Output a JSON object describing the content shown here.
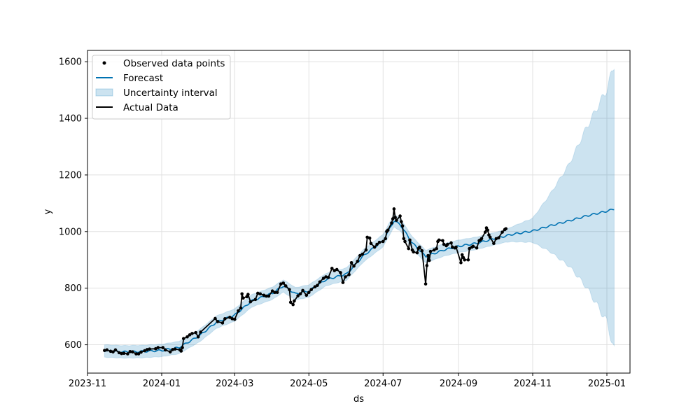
{
  "chart_data": {
    "type": "line",
    "xlabel": "ds",
    "ylabel": "y",
    "x_type": "date",
    "xlim": [
      "2023-11-01",
      "2025-01-20"
    ],
    "ylim": [
      500,
      1640
    ],
    "grid": true,
    "legend_placement": "top-left",
    "x_ticks": [
      "2023-11",
      "2024-01",
      "2024-03",
      "2024-05",
      "2024-07",
      "2024-09",
      "2024-11",
      "2025-01"
    ],
    "x_tick_labels": [
      "2023-11",
      "2024-01",
      "2024-03",
      "2024-05",
      "2024-07",
      "2024-09",
      "2024-11",
      "2025-01"
    ],
    "y_ticks": [
      600,
      800,
      1000,
      1200,
      1400,
      1600
    ],
    "legend": [
      {
        "label": "Observed data points",
        "kind": "marker"
      },
      {
        "label": "Forecast",
        "kind": "line"
      },
      {
        "label": "Uncertainty interval",
        "kind": "band"
      },
      {
        "label": "Actual Data",
        "kind": "line-black"
      }
    ],
    "colors": {
      "forecast": "#0072b2",
      "band": "#0072b2",
      "actual": "#000000",
      "grid": "#e0e0e0"
    },
    "series": [
      {
        "name": "Actual Data",
        "points": [
          [
            "2023-11-15",
            580
          ],
          [
            "2023-11-17",
            582
          ],
          [
            "2023-11-20",
            577
          ],
          [
            "2023-11-22",
            575
          ],
          [
            "2023-11-24",
            582
          ],
          [
            "2023-11-27",
            572
          ],
          [
            "2023-11-29",
            569
          ],
          [
            "2023-12-01",
            570
          ],
          [
            "2023-12-04",
            568
          ],
          [
            "2023-12-06",
            576
          ],
          [
            "2023-12-08",
            575
          ],
          [
            "2023-12-11",
            568
          ],
          [
            "2023-12-13",
            568
          ],
          [
            "2023-12-15",
            574
          ],
          [
            "2023-12-18",
            579
          ],
          [
            "2023-12-20",
            583
          ],
          [
            "2023-12-22",
            585
          ],
          [
            "2023-12-27",
            586
          ],
          [
            "2023-12-29",
            590
          ],
          [
            "2024-01-02",
            590
          ],
          [
            "2024-01-04",
            582
          ],
          [
            "2024-01-08",
            575
          ],
          [
            "2024-01-10",
            583
          ],
          [
            "2024-01-12",
            585
          ],
          [
            "2024-01-16",
            582
          ],
          [
            "2024-01-17",
            578
          ],
          [
            "2024-01-18",
            590
          ],
          [
            "2024-01-19",
            622
          ],
          [
            "2024-01-22",
            628
          ],
          [
            "2024-01-24",
            635
          ],
          [
            "2024-01-26",
            640
          ],
          [
            "2024-01-29",
            643
          ],
          [
            "2024-01-31",
            628
          ],
          [
            "2024-02-02",
            645
          ],
          [
            "2024-02-14",
            693
          ],
          [
            "2024-02-16",
            682
          ],
          [
            "2024-02-20",
            677
          ],
          [
            "2024-02-22",
            692
          ],
          [
            "2024-02-26",
            697
          ],
          [
            "2024-02-28",
            692
          ],
          [
            "2024-03-01",
            690
          ],
          [
            "2024-03-04",
            720
          ],
          [
            "2024-03-06",
            730
          ],
          [
            "2024-03-07",
            780
          ],
          [
            "2024-03-08",
            765
          ],
          [
            "2024-03-11",
            770
          ],
          [
            "2024-03-12",
            778
          ],
          [
            "2024-03-14",
            752
          ],
          [
            "2024-03-18",
            760
          ],
          [
            "2024-03-20",
            782
          ],
          [
            "2024-03-22",
            780
          ],
          [
            "2024-03-25",
            775
          ],
          [
            "2024-03-27",
            772
          ],
          [
            "2024-03-29",
            772
          ],
          [
            "2024-04-01",
            790
          ],
          [
            "2024-04-03",
            785
          ],
          [
            "2024-04-05",
            785
          ],
          [
            "2024-04-08",
            815
          ],
          [
            "2024-04-10",
            818
          ],
          [
            "2024-04-12",
            808
          ],
          [
            "2024-04-15",
            795
          ],
          [
            "2024-04-16",
            750
          ],
          [
            "2024-04-18",
            742
          ],
          [
            "2024-04-19",
            755
          ],
          [
            "2024-04-22",
            773
          ],
          [
            "2024-04-24",
            780
          ],
          [
            "2024-04-26",
            792
          ],
          [
            "2024-04-29",
            775
          ],
          [
            "2024-05-01",
            785
          ],
          [
            "2024-05-03",
            795
          ],
          [
            "2024-05-06",
            805
          ],
          [
            "2024-05-08",
            810
          ],
          [
            "2024-05-10",
            822
          ],
          [
            "2024-05-13",
            835
          ],
          [
            "2024-05-15",
            840
          ],
          [
            "2024-05-17",
            838
          ],
          [
            "2024-05-20",
            870
          ],
          [
            "2024-05-22",
            862
          ],
          [
            "2024-05-24",
            866
          ],
          [
            "2024-05-27",
            855
          ],
          [
            "2024-05-29",
            820
          ],
          [
            "2024-05-31",
            840
          ],
          [
            "2024-06-03",
            848
          ],
          [
            "2024-06-05",
            890
          ],
          [
            "2024-06-07",
            878
          ],
          [
            "2024-06-10",
            895
          ],
          [
            "2024-06-12",
            915
          ],
          [
            "2024-06-14",
            920
          ],
          [
            "2024-06-17",
            935
          ],
          [
            "2024-06-18",
            980
          ],
          [
            "2024-06-20",
            977
          ],
          [
            "2024-06-21",
            958
          ],
          [
            "2024-06-24",
            945
          ],
          [
            "2024-06-26",
            955
          ],
          [
            "2024-06-28",
            962
          ],
          [
            "2024-07-01",
            965
          ],
          [
            "2024-07-03",
            975
          ],
          [
            "2024-07-04",
            1000
          ],
          [
            "2024-07-05",
            1005
          ],
          [
            "2024-07-08",
            1030
          ],
          [
            "2024-07-09",
            1045
          ],
          [
            "2024-07-10",
            1080
          ],
          [
            "2024-07-11",
            1050
          ],
          [
            "2024-07-12",
            1040
          ],
          [
            "2024-07-15",
            1055
          ],
          [
            "2024-07-16",
            1035
          ],
          [
            "2024-07-17",
            1020
          ],
          [
            "2024-07-18",
            975
          ],
          [
            "2024-07-19",
            965
          ],
          [
            "2024-07-22",
            940
          ],
          [
            "2024-07-23",
            970
          ],
          [
            "2024-07-25",
            935
          ],
          [
            "2024-07-26",
            928
          ],
          [
            "2024-07-29",
            925
          ],
          [
            "2024-07-30",
            940
          ],
          [
            "2024-07-31",
            945
          ],
          [
            "2024-08-02",
            932
          ],
          [
            "2024-08-05",
            815
          ],
          [
            "2024-08-06",
            880
          ],
          [
            "2024-08-07",
            915
          ],
          [
            "2024-08-08",
            898
          ],
          [
            "2024-08-09",
            930
          ],
          [
            "2024-08-12",
            935
          ],
          [
            "2024-08-14",
            940
          ],
          [
            "2024-08-15",
            965
          ],
          [
            "2024-08-16",
            970
          ],
          [
            "2024-08-19",
            968
          ],
          [
            "2024-08-20",
            955
          ],
          [
            "2024-08-22",
            950
          ],
          [
            "2024-08-23",
            955
          ],
          [
            "2024-08-26",
            960
          ],
          [
            "2024-08-27",
            945
          ],
          [
            "2024-08-29",
            942
          ],
          [
            "2024-08-30",
            945
          ],
          [
            "2024-09-03",
            890
          ],
          [
            "2024-09-04",
            918
          ],
          [
            "2024-09-05",
            908
          ],
          [
            "2024-09-06",
            900
          ],
          [
            "2024-09-09",
            900
          ],
          [
            "2024-09-10",
            940
          ],
          [
            "2024-09-12",
            945
          ],
          [
            "2024-09-13",
            948
          ],
          [
            "2024-09-16",
            942
          ],
          [
            "2024-09-18",
            968
          ],
          [
            "2024-09-19",
            970
          ],
          [
            "2024-09-20",
            975
          ],
          [
            "2024-09-23",
            998
          ],
          [
            "2024-09-24",
            1013
          ],
          [
            "2024-09-25",
            1005
          ],
          [
            "2024-09-26",
            988
          ],
          [
            "2024-09-27",
            980
          ],
          [
            "2024-09-30",
            958
          ],
          [
            "2024-10-02",
            975
          ],
          [
            "2024-10-04",
            978
          ],
          [
            "2024-10-07",
            998
          ],
          [
            "2024-10-09",
            1007
          ],
          [
            "2024-10-10",
            1010
          ]
        ]
      },
      {
        "name": "Forecast",
        "points": [
          [
            "2023-11-15",
            578
          ],
          [
            "2023-12-01",
            575
          ],
          [
            "2023-12-15",
            576
          ],
          [
            "2024-01-01",
            580
          ],
          [
            "2024-01-15",
            590
          ],
          [
            "2024-02-01",
            632
          ],
          [
            "2024-02-15",
            680
          ],
          [
            "2024-03-01",
            705
          ],
          [
            "2024-03-15",
            755
          ],
          [
            "2024-04-01",
            782
          ],
          [
            "2024-04-10",
            808
          ],
          [
            "2024-04-20",
            780
          ],
          [
            "2024-05-01",
            790
          ],
          [
            "2024-05-15",
            830
          ],
          [
            "2024-06-01",
            850
          ],
          [
            "2024-06-15",
            915
          ],
          [
            "2024-07-01",
            968
          ],
          [
            "2024-07-10",
            1038
          ],
          [
            "2024-07-15",
            1025
          ],
          [
            "2024-07-25",
            960
          ],
          [
            "2024-08-05",
            912
          ],
          [
            "2024-08-20",
            935
          ],
          [
            "2024-09-01",
            948
          ],
          [
            "2024-09-15",
            958
          ],
          [
            "2024-10-01",
            975
          ],
          [
            "2024-10-15",
            990
          ],
          [
            "2024-11-01",
            1002
          ],
          [
            "2024-11-15",
            1020
          ],
          [
            "2024-12-01",
            1038
          ],
          [
            "2024-12-15",
            1055
          ],
          [
            "2025-01-01",
            1072
          ],
          [
            "2025-01-07",
            1080
          ]
        ]
      }
    ],
    "uncertainty_interval": {
      "dates": [
        "2023-11-15",
        "2024-01-01",
        "2024-10-10",
        "2024-11-01",
        "2024-11-15",
        "2024-12-01",
        "2024-12-15",
        "2025-01-01",
        "2025-01-07"
      ],
      "lower_offset": [
        -22,
        -22,
        -22,
        -40,
        -90,
        -160,
        -250,
        -390,
        -500
      ],
      "upper_offset": [
        22,
        22,
        22,
        45,
        110,
        200,
        310,
        430,
        510
      ]
    }
  }
}
